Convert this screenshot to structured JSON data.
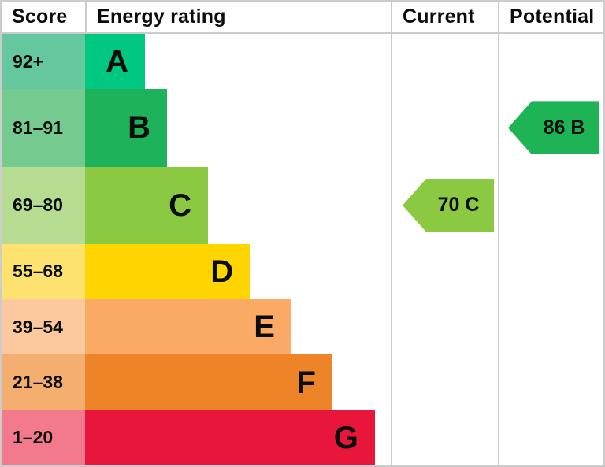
{
  "header": {
    "score": "Score",
    "energy_rating": "Energy rating",
    "current": "Current",
    "potential": "Potential"
  },
  "rows": [
    {
      "grade": "A",
      "score_range": "92+",
      "score_bg": "#64c79e",
      "bar_color": "#00c781",
      "bar_width": "19.6%"
    },
    {
      "grade": "B",
      "score_range": "81–91",
      "score_bg": "#74ca8f",
      "bar_color": "#1eb35a",
      "bar_width": "26.8%"
    },
    {
      "grade": "C",
      "score_range": "69–80",
      "score_bg": "#b5dc90",
      "bar_color": "#8bc943",
      "bar_width": "40.2%"
    },
    {
      "grade": "D",
      "score_range": "55–68",
      "score_bg": "#fde270",
      "bar_color": "#ffd500",
      "bar_width": "53.9%"
    },
    {
      "grade": "E",
      "score_range": "39–54",
      "score_bg": "#fcc99e",
      "bar_color": "#fbaa66",
      "bar_width": "67.5%"
    },
    {
      "grade": "F",
      "score_range": "21–38",
      "score_bg": "#f4ae70",
      "bar_color": "#ee8428",
      "bar_width": "80.9%"
    },
    {
      "grade": "G",
      "score_range": "1–20",
      "score_bg": "#f3798d",
      "bar_color": "#e9163c",
      "bar_width": "94.8%"
    }
  ],
  "current": {
    "label": "70 C",
    "value": 70,
    "grade": "C",
    "color": "#8bc943"
  },
  "potential": {
    "label": "86 B",
    "value": 86,
    "grade": "B",
    "color": "#1eb355"
  },
  "grid_color": "#cccccc",
  "chart_data": {
    "type": "bar",
    "orientation": "horizontal",
    "title": "Energy rating",
    "categories": [
      "A",
      "B",
      "C",
      "D",
      "E",
      "F",
      "G"
    ],
    "score_ranges": [
      "92+",
      "81-91",
      "69-80",
      "55-68",
      "39-54",
      "21-38",
      "1-20"
    ],
    "bar_width_pct": [
      19.6,
      26.8,
      40.2,
      53.9,
      67.5,
      80.9,
      94.8
    ],
    "bar_colors": [
      "#00c781",
      "#1eb35a",
      "#8bc943",
      "#ffd500",
      "#fbaa66",
      "#ee8428",
      "#e9163c"
    ],
    "score_cell_colors": [
      "#64c79e",
      "#74ca8f",
      "#b5dc90",
      "#fde270",
      "#fcc99e",
      "#f4ae70",
      "#f3798d"
    ],
    "current": {
      "score": 70,
      "grade": "C"
    },
    "potential": {
      "score": 86,
      "grade": "B"
    },
    "legend_position": "none",
    "grid": false
  }
}
